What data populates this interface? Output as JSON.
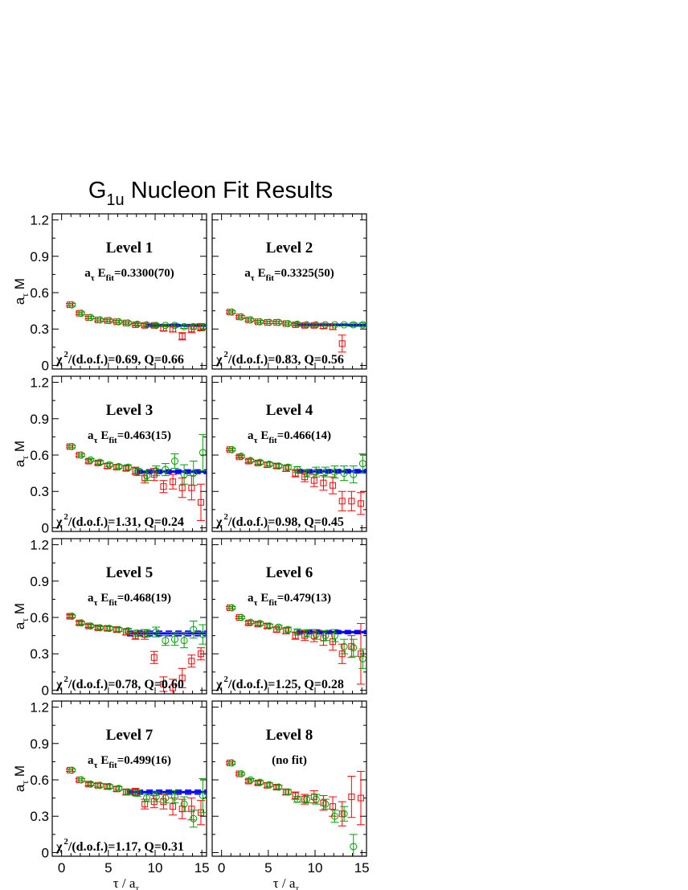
{
  "figure": {
    "title_main": "G",
    "title_sub": "1u",
    "title_rest": " Nucleon Fit Results",
    "ylabel_main": "a",
    "ylabel_sub": "τ",
    "ylabel_rest": " M",
    "xlabel_main": "τ / a",
    "xlabel_sub": "τ",
    "efit_prefix_main": "a",
    "efit_prefix_sub": "τ",
    "efit_E": " E",
    "efit_E_sub": "fit",
    "chi_prefix": "χ",
    "chi_sup": "2",
    "chi_rest": "/(d.o.f.)="
  },
  "colors": {
    "series_a": "#ff0000",
    "series_b": "#00a000",
    "fit_line": "#0000ff",
    "frame": "#000000"
  },
  "chart_data": [
    {
      "type": "scatter",
      "panel_title": "Level 1",
      "efit": "=0.3300(70)",
      "chi": "0.69, Q=0.66",
      "xlim": [
        -1,
        15.5
      ],
      "ylim": [
        -0.03,
        1.25
      ],
      "xticks": [
        "0",
        "5",
        "10",
        "15"
      ],
      "yticks": [
        "0",
        "0.3",
        "0.6",
        "0.9",
        "1.2"
      ],
      "fit": {
        "value": 0.33,
        "err": 0.007,
        "x_range": [
          9,
          15.5
        ]
      },
      "series": [
        {
          "marker": "square",
          "x": [
            1,
            2,
            3,
            4,
            5,
            6,
            7,
            8,
            9,
            10,
            11,
            12,
            13,
            14,
            15
          ],
          "y": [
            0.5,
            0.43,
            0.395,
            0.375,
            0.37,
            0.36,
            0.35,
            0.335,
            0.33,
            0.33,
            0.305,
            0.3,
            0.24,
            0.3,
            0.315
          ],
          "err": [
            0.01,
            0.01,
            0.01,
            0.01,
            0.01,
            0.01,
            0.01,
            0.01,
            0.015,
            0.015,
            0.02,
            0.025,
            0.03,
            0.03,
            0.03
          ]
        },
        {
          "marker": "circle",
          "x": [
            1,
            2,
            3,
            4,
            5,
            6,
            7,
            8,
            9,
            10,
            11,
            12,
            13,
            14,
            15
          ],
          "y": [
            0.5,
            0.43,
            0.395,
            0.375,
            0.37,
            0.36,
            0.35,
            0.34,
            0.335,
            0.33,
            0.33,
            0.33,
            0.32,
            0.32,
            0.315
          ],
          "err": [
            0.01,
            0.01,
            0.01,
            0.01,
            0.01,
            0.01,
            0.01,
            0.01,
            0.01,
            0.01,
            0.01,
            0.015,
            0.015,
            0.02,
            0.02
          ]
        }
      ]
    },
    {
      "type": "scatter",
      "panel_title": "Level 2",
      "efit": "=0.3325(50)",
      "chi": "0.83, Q=0.56",
      "xlim": [
        -1,
        15.5
      ],
      "ylim": [
        -0.03,
        1.25
      ],
      "xticks": [
        "0",
        "5",
        "10",
        "15"
      ],
      "yticks": [
        "0",
        "0.3",
        "0.6",
        "0.9",
        "1.2"
      ],
      "fit": {
        "value": 0.3325,
        "err": 0.005,
        "x_range": [
          8,
          15.5
        ]
      },
      "series": [
        {
          "marker": "square",
          "x": [
            1,
            2,
            3,
            4,
            5,
            6,
            7,
            8,
            9,
            10,
            11,
            12,
            13
          ],
          "y": [
            0.44,
            0.4,
            0.375,
            0.36,
            0.355,
            0.355,
            0.345,
            0.335,
            0.33,
            0.33,
            0.325,
            0.32,
            0.18
          ],
          "err": [
            0.01,
            0.01,
            0.01,
            0.01,
            0.01,
            0.01,
            0.01,
            0.01,
            0.015,
            0.015,
            0.02,
            0.025,
            0.07
          ]
        },
        {
          "marker": "circle",
          "x": [
            1,
            2,
            3,
            4,
            5,
            6,
            7,
            8,
            9,
            10,
            11,
            12,
            13,
            14,
            15
          ],
          "y": [
            0.44,
            0.4,
            0.375,
            0.36,
            0.355,
            0.355,
            0.345,
            0.34,
            0.335,
            0.335,
            0.335,
            0.335,
            0.335,
            0.335,
            0.335
          ],
          "err": [
            0.01,
            0.01,
            0.01,
            0.01,
            0.01,
            0.01,
            0.01,
            0.01,
            0.01,
            0.01,
            0.01,
            0.01,
            0.01,
            0.015,
            0.015
          ]
        }
      ]
    },
    {
      "type": "scatter",
      "panel_title": "Level 3",
      "efit": "=0.463(15)",
      "chi": "1.31, Q=0.24",
      "xlim": [
        -1,
        15.5
      ],
      "ylim": [
        -0.03,
        1.25
      ],
      "xticks": [
        "0",
        "5",
        "10",
        "15"
      ],
      "yticks": [
        "0",
        "0.3",
        "0.6",
        "0.9",
        "1.2"
      ],
      "fit": {
        "value": 0.463,
        "err": 0.015,
        "x_range": [
          8,
          15.5
        ]
      },
      "series": [
        {
          "marker": "square",
          "x": [
            1,
            2,
            3,
            4,
            5,
            6,
            7,
            8,
            9,
            10,
            11,
            12,
            13,
            14,
            15
          ],
          "y": [
            0.67,
            0.6,
            0.55,
            0.535,
            0.51,
            0.5,
            0.49,
            0.47,
            0.41,
            0.44,
            0.34,
            0.38,
            0.33,
            0.33,
            0.21
          ],
          "err": [
            0.01,
            0.01,
            0.015,
            0.015,
            0.02,
            0.02,
            0.02,
            0.03,
            0.04,
            0.05,
            0.05,
            0.06,
            0.08,
            0.1,
            0.15
          ]
        },
        {
          "marker": "circle",
          "x": [
            1,
            2,
            3,
            4,
            5,
            6,
            7,
            8,
            9,
            10,
            11,
            12,
            13,
            14,
            15
          ],
          "y": [
            0.67,
            0.6,
            0.56,
            0.54,
            0.52,
            0.505,
            0.5,
            0.46,
            0.43,
            0.47,
            0.48,
            0.55,
            0.44,
            0.45,
            0.62
          ],
          "err": [
            0.01,
            0.01,
            0.01,
            0.015,
            0.015,
            0.015,
            0.02,
            0.03,
            0.04,
            0.04,
            0.05,
            0.06,
            0.08,
            0.1,
            0.15
          ]
        }
      ]
    },
    {
      "type": "scatter",
      "panel_title": "Level 4",
      "efit": "=0.466(14)",
      "chi": "0.98, Q=0.45",
      "xlim": [
        -1,
        15.5
      ],
      "ylim": [
        -0.03,
        1.25
      ],
      "xticks": [
        "0",
        "5",
        "10",
        "15"
      ],
      "yticks": [
        "0",
        "0.3",
        "0.6",
        "0.9",
        "1.2"
      ],
      "fit": {
        "value": 0.466,
        "err": 0.014,
        "x_range": [
          8,
          15.5
        ]
      },
      "series": [
        {
          "marker": "square",
          "x": [
            1,
            2,
            3,
            4,
            5,
            6,
            7,
            8,
            9,
            10,
            11,
            12,
            13,
            14,
            15
          ],
          "y": [
            0.645,
            0.585,
            0.55,
            0.535,
            0.52,
            0.51,
            0.49,
            0.45,
            0.42,
            0.39,
            0.37,
            0.35,
            0.22,
            0.22,
            0.2
          ],
          "err": [
            0.01,
            0.01,
            0.015,
            0.015,
            0.02,
            0.02,
            0.025,
            0.03,
            0.04,
            0.05,
            0.06,
            0.07,
            0.08,
            0.08,
            0.09
          ]
        },
        {
          "marker": "circle",
          "x": [
            1,
            2,
            3,
            4,
            5,
            6,
            7,
            8,
            9,
            10,
            11,
            12,
            13,
            14,
            15
          ],
          "y": [
            0.645,
            0.59,
            0.555,
            0.54,
            0.525,
            0.51,
            0.5,
            0.48,
            0.45,
            0.46,
            0.46,
            0.46,
            0.45,
            0.44,
            0.53
          ],
          "err": [
            0.01,
            0.01,
            0.01,
            0.015,
            0.015,
            0.015,
            0.02,
            0.025,
            0.03,
            0.04,
            0.04,
            0.05,
            0.06,
            0.07,
            0.08
          ]
        }
      ]
    },
    {
      "type": "scatter",
      "panel_title": "Level 5",
      "efit": "=0.468(19)",
      "chi": "0.78, Q=0.60",
      "xlim": [
        -1,
        15.5
      ],
      "ylim": [
        -0.03,
        1.25
      ],
      "xticks": [
        "0",
        "5",
        "10",
        "15"
      ],
      "yticks": [
        "0",
        "0.3",
        "0.6",
        "0.9",
        "1.2"
      ],
      "fit": {
        "value": 0.468,
        "err": 0.019,
        "x_range": [
          7,
          15.5
        ]
      },
      "series": [
        {
          "marker": "square",
          "x": [
            1,
            2,
            3,
            4,
            5,
            6,
            7,
            8,
            9,
            10,
            11,
            12,
            13,
            14,
            15
          ],
          "y": [
            0.61,
            0.555,
            0.53,
            0.515,
            0.51,
            0.5,
            0.48,
            0.45,
            0.46,
            0.27,
            0.05,
            0.02,
            0.1,
            0.24,
            0.3
          ],
          "err": [
            0.015,
            0.015,
            0.015,
            0.015,
            0.02,
            0.02,
            0.025,
            0.03,
            0.04,
            0.05,
            0.06,
            0.07,
            0.08,
            0.05,
            0.05
          ]
        },
        {
          "marker": "circle",
          "x": [
            1,
            2,
            3,
            4,
            5,
            6,
            7,
            8,
            9,
            10,
            11,
            12,
            13,
            14,
            15
          ],
          "y": [
            0.61,
            0.555,
            0.53,
            0.515,
            0.51,
            0.5,
            0.49,
            0.47,
            0.47,
            0.48,
            0.41,
            0.42,
            0.41,
            0.5,
            0.46
          ],
          "err": [
            0.01,
            0.01,
            0.01,
            0.01,
            0.015,
            0.015,
            0.02,
            0.025,
            0.03,
            0.04,
            0.04,
            0.05,
            0.06,
            0.07,
            0.08
          ]
        }
      ]
    },
    {
      "type": "scatter",
      "panel_title": "Level 6",
      "efit": "=0.479(13)",
      "chi": "1.25, Q=0.28",
      "xlim": [
        -1,
        15.5
      ],
      "ylim": [
        -0.03,
        1.25
      ],
      "xticks": [
        "0",
        "5",
        "10",
        "15"
      ],
      "yticks": [
        "0",
        "0.3",
        "0.6",
        "0.9",
        "1.2"
      ],
      "fit": {
        "value": 0.479,
        "err": 0.013,
        "x_range": [
          8,
          15.5
        ]
      },
      "series": [
        {
          "marker": "square",
          "x": [
            1,
            2,
            3,
            4,
            5,
            6,
            7,
            8,
            9,
            10,
            11,
            12,
            13,
            14,
            15
          ],
          "y": [
            0.68,
            0.6,
            0.555,
            0.545,
            0.53,
            0.5,
            0.49,
            0.45,
            0.45,
            0.45,
            0.43,
            0.4,
            0.3,
            0.36,
            0.3
          ],
          "err": [
            0.01,
            0.01,
            0.015,
            0.015,
            0.02,
            0.02,
            0.025,
            0.03,
            0.04,
            0.05,
            0.06,
            0.07,
            0.08,
            0.09,
            0.25
          ]
        },
        {
          "marker": "circle",
          "x": [
            1,
            2,
            3,
            4,
            5,
            6,
            7,
            8,
            9,
            10,
            11,
            12,
            13,
            14,
            15
          ],
          "y": [
            0.68,
            0.6,
            0.56,
            0.55,
            0.53,
            0.52,
            0.5,
            0.48,
            0.47,
            0.46,
            0.45,
            0.45,
            0.36,
            0.35,
            0.26
          ],
          "err": [
            0.01,
            0.01,
            0.01,
            0.015,
            0.015,
            0.015,
            0.02,
            0.025,
            0.03,
            0.04,
            0.04,
            0.05,
            0.06,
            0.07,
            0.08
          ]
        }
      ]
    },
    {
      "type": "scatter",
      "panel_title": "Level 7",
      "efit": "=0.499(16)",
      "chi": "1.17, Q=0.31",
      "xlim": [
        -1,
        15.5
      ],
      "ylim": [
        -0.03,
        1.25
      ],
      "xticks": [
        "0",
        "5",
        "10",
        "15"
      ],
      "yticks": [
        "0",
        "0.3",
        "0.6",
        "0.9",
        "1.2"
      ],
      "fit": {
        "value": 0.499,
        "err": 0.016,
        "x_range": [
          7,
          15.5
        ]
      },
      "series": [
        {
          "marker": "square",
          "x": [
            1,
            2,
            3,
            4,
            5,
            6,
            7,
            8,
            9,
            10,
            11,
            12,
            13,
            14,
            15
          ],
          "y": [
            0.68,
            0.6,
            0.565,
            0.555,
            0.545,
            0.525,
            0.5,
            0.5,
            0.4,
            0.42,
            0.42,
            0.38,
            0.36,
            0.36,
            0.33
          ],
          "err": [
            0.01,
            0.01,
            0.015,
            0.015,
            0.02,
            0.02,
            0.025,
            0.03,
            0.04,
            0.05,
            0.06,
            0.07,
            0.08,
            0.09,
            0.1
          ]
        },
        {
          "marker": "circle",
          "x": [
            1,
            2,
            3,
            4,
            5,
            6,
            7,
            8,
            9,
            10,
            11,
            12,
            13,
            14,
            15
          ],
          "y": [
            0.68,
            0.6,
            0.565,
            0.555,
            0.545,
            0.53,
            0.5,
            0.49,
            0.45,
            0.46,
            0.45,
            0.46,
            0.4,
            0.28,
            0.47
          ],
          "err": [
            0.01,
            0.01,
            0.01,
            0.015,
            0.015,
            0.015,
            0.02,
            0.025,
            0.03,
            0.04,
            0.04,
            0.05,
            0.06,
            0.07,
            0.14
          ]
        }
      ]
    },
    {
      "type": "scatter",
      "panel_title": "Level 8",
      "no_fit": "(no fit)",
      "xlim": [
        -1,
        15.5
      ],
      "ylim": [
        -0.03,
        1.25
      ],
      "xticks": [
        "0",
        "5",
        "10",
        "15"
      ],
      "yticks": [
        "0",
        "0.3",
        "0.6",
        "0.9",
        "1.2"
      ],
      "series": [
        {
          "marker": "square",
          "x": [
            1,
            2,
            3,
            4,
            5,
            6,
            7,
            8,
            9,
            10,
            11,
            12,
            13,
            14,
            15
          ],
          "y": [
            0.74,
            0.65,
            0.59,
            0.575,
            0.555,
            0.54,
            0.5,
            0.47,
            0.44,
            0.46,
            0.41,
            0.38,
            0.32,
            0.46,
            0.45
          ],
          "err": [
            0.01,
            0.01,
            0.015,
            0.015,
            0.02,
            0.02,
            0.025,
            0.03,
            0.04,
            0.05,
            0.06,
            0.08,
            0.1,
            0.17,
            0.22
          ]
        },
        {
          "marker": "circle",
          "x": [
            1,
            2,
            3,
            4,
            5,
            6,
            7,
            8,
            9,
            10,
            11,
            12,
            13,
            14
          ],
          "y": [
            0.74,
            0.65,
            0.6,
            0.58,
            0.56,
            0.54,
            0.5,
            0.44,
            0.44,
            0.44,
            0.4,
            0.3,
            0.32,
            0.05
          ],
          "err": [
            0.01,
            0.01,
            0.01,
            0.015,
            0.015,
            0.015,
            0.02,
            0.025,
            0.03,
            0.04,
            0.04,
            0.05,
            0.06,
            0.1
          ]
        }
      ]
    }
  ]
}
